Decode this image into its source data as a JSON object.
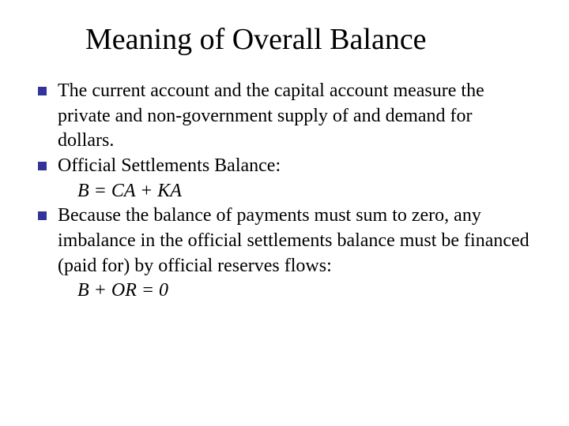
{
  "background_color": "#ffffff",
  "text_color": "#000000",
  "bullet_color": "#333399",
  "font_family": "Times New Roman",
  "title_fontsize": 38,
  "body_fontsize": 24,
  "title": "Meaning of Overall Balance",
  "bullets": [
    {
      "text": "The current account and the capital account measure the private and non-government supply of and demand for dollars."
    },
    {
      "text": "Official Settlements Balance:",
      "formula": "B = CA + KA"
    },
    {
      "text": "Because the balance of payments must sum to zero, any imbalance in the official settlements balance must be financed (paid for) by official reserves flows:",
      "formula": "B + OR = 0"
    }
  ]
}
